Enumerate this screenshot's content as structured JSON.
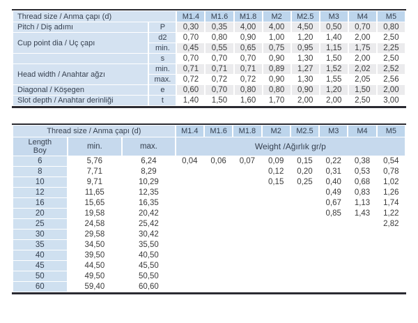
{
  "colors": {
    "header_pill": "#bdd5ec",
    "label_panel": "#d4e2f1",
    "subheader_panel": "#c6d9ed",
    "stripe": "#ebebed",
    "rule": "#2a2a31",
    "text": "#3a3a3a"
  },
  "table1": {
    "title": "Thread size / Anma çapı (d)",
    "columns": [
      "M1.4",
      "M1.6",
      "M1.8",
      "M2",
      "M2.5",
      "M3",
      "M4",
      "M5"
    ],
    "groups": [
      {
        "label": "Pitch / Diş adımı",
        "rows": [
          {
            "sym": "P",
            "values": [
              "0,30",
              "0,35",
              "4,00",
              "4,00",
              "4,50",
              "0,50",
              "0,70",
              "0,80"
            ]
          }
        ]
      },
      {
        "label": "Cup point dia / Uç çapı",
        "rows": [
          {
            "sym": "d2",
            "values": [
              "0,70",
              "0,80",
              "0,90",
              "1,00",
              "1,20",
              "1,40",
              "2,00",
              "2,50"
            ]
          },
          {
            "sym": "min.",
            "values": [
              "0,45",
              "0,55",
              "0,65",
              "0,75",
              "0,95",
              "1,15",
              "1,75",
              "2,25"
            ]
          }
        ]
      },
      {
        "label": "",
        "rows": [
          {
            "sym": "s",
            "values": [
              "0,70",
              "0,70",
              "0,70",
              "0,90",
              "1,30",
              "1,50",
              "2,00",
              "2,50"
            ]
          }
        ]
      },
      {
        "label": "Head width / Anahtar ağzı",
        "rows": [
          {
            "sym": "min.",
            "values": [
              "0,71",
              "0,71",
              "0,71",
              "0,89",
              "1,27",
              "1,52",
              "2,02",
              "2,52"
            ]
          },
          {
            "sym": "max.",
            "values": [
              "0,72",
              "0,72",
              "0,72",
              "0,90",
              "1,30",
              "1,55",
              "2,05",
              "2,56"
            ]
          }
        ]
      },
      {
        "label": "Diagonal / Köşegen",
        "rows": [
          {
            "sym": "e",
            "values": [
              "0,60",
              "0,70",
              "0,80",
              "0,80",
              "0,90",
              "1,20",
              "1,50",
              "2,00"
            ]
          }
        ]
      },
      {
        "label": "Slot depth / Anahtar derinliği",
        "rows": [
          {
            "sym": "t",
            "values": [
              "1,40",
              "1,50",
              "1,60",
              "1,70",
              "2,00",
              "2,00",
              "2,50",
              "3,00"
            ]
          }
        ]
      }
    ]
  },
  "table2": {
    "title": "Thread size / Anma çapı (d)",
    "columns": [
      "M1.4",
      "M1.6",
      "M1.8",
      "M2",
      "M2.5",
      "M3",
      "M4",
      "M5"
    ],
    "length_header": [
      "Length",
      "Boy"
    ],
    "min_header": "min.",
    "max_header": "max.",
    "weight_header": "Weight /Ağırlık gr/p",
    "rows": [
      {
        "length": "6",
        "min": "5,76",
        "max": "6,24",
        "weights": [
          "0,04",
          "0,06",
          "0,07",
          "0,09",
          "0,15",
          "0,22",
          "0,38",
          "0,54"
        ]
      },
      {
        "length": "8",
        "min": "7,71",
        "max": "8,29",
        "weights": [
          "",
          "",
          "",
          "0,12",
          "0,20",
          "0,31",
          "0,53",
          "0,78"
        ]
      },
      {
        "length": "10",
        "min": "9,71",
        "max": "10,29",
        "weights": [
          "",
          "",
          "",
          "0,15",
          "0,25",
          "0,40",
          "0,68",
          "1,02"
        ]
      },
      {
        "length": "12",
        "min": "11,65",
        "max": "12,35",
        "weights": [
          "",
          "",
          "",
          "",
          "",
          "0,49",
          "0,83",
          "1,26"
        ]
      },
      {
        "length": "16",
        "min": "15,65",
        "max": "16,35",
        "weights": [
          "",
          "",
          "",
          "",
          "",
          "0,67",
          "1,13",
          "1,74"
        ]
      },
      {
        "length": "20",
        "min": "19,58",
        "max": "20,42",
        "weights": [
          "",
          "",
          "",
          "",
          "",
          "0,85",
          "1,43",
          "1,22"
        ]
      },
      {
        "length": "25",
        "min": "24,58",
        "max": "25,42",
        "weights": [
          "",
          "",
          "",
          "",
          "",
          "",
          "",
          "2,82"
        ]
      },
      {
        "length": "30",
        "min": "29,58",
        "max": "30,42",
        "weights": [
          "",
          "",
          "",
          "",
          "",
          "",
          "",
          ""
        ]
      },
      {
        "length": "35",
        "min": "34,50",
        "max": "35,50",
        "weights": [
          "",
          "",
          "",
          "",
          "",
          "",
          "",
          ""
        ]
      },
      {
        "length": "40",
        "min": "39,50",
        "max": "40,50",
        "weights": [
          "",
          "",
          "",
          "",
          "",
          "",
          "",
          ""
        ]
      },
      {
        "length": "45",
        "min": "44,50",
        "max": "45,50",
        "weights": [
          "",
          "",
          "",
          "",
          "",
          "",
          "",
          ""
        ]
      },
      {
        "length": "50",
        "min": "49,50",
        "max": "50,50",
        "weights": [
          "",
          "",
          "",
          "",
          "",
          "",
          "",
          ""
        ]
      },
      {
        "length": "60",
        "min": "59,40",
        "max": "60,60",
        "weights": [
          "",
          "",
          "",
          "",
          "",
          "",
          "",
          ""
        ]
      }
    ]
  }
}
